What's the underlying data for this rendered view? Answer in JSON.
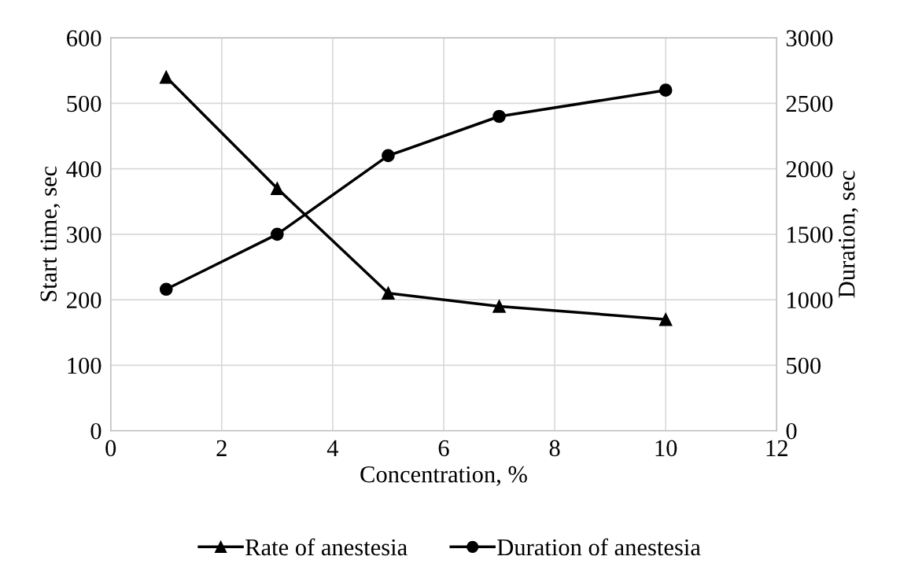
{
  "chart_data": {
    "type": "line",
    "xlabel": "Concentration, %",
    "ylabel": "Start time, sec",
    "y2label": "Duration, sec",
    "x": [
      1,
      3,
      5,
      7,
      10
    ],
    "series": [
      {
        "name": "Rate of anestesia",
        "color": "#000000",
        "marker": "triangle",
        "values": [
          540,
          370,
          210,
          190,
          170
        ]
      },
      {
        "name": "Duration of anestesia",
        "color": "#000000",
        "marker": "circle",
        "axis": "y2",
        "values": [
          1080,
          1500,
          2100,
          2400,
          2600
        ]
      }
    ],
    "xlim": [
      0,
      12
    ],
    "xticks": [
      0,
      2,
      4,
      6,
      8,
      10,
      12
    ],
    "ylim": [
      0,
      600
    ],
    "yticks": [
      0,
      100,
      200,
      300,
      400,
      500,
      600
    ],
    "y2lim": [
      0,
      3000
    ],
    "y2ticks": [
      0,
      500,
      1000,
      1500,
      2000,
      2500,
      3000
    ],
    "grid": true,
    "legend": "bottom",
    "line_style": "solid"
  }
}
